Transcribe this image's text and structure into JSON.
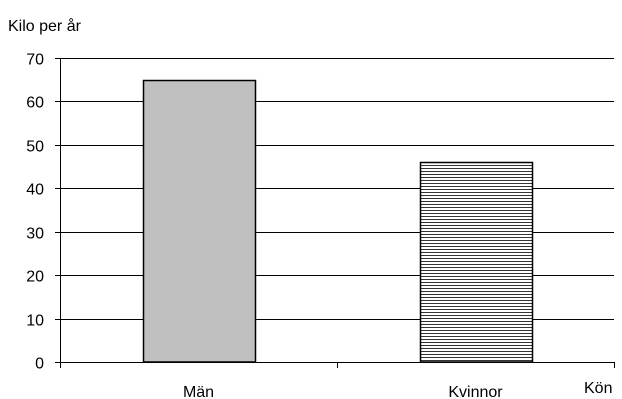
{
  "chart_data": {
    "type": "bar",
    "ylabel": "Kilo per år",
    "xlabel": "Kön",
    "categories": [
      "Män",
      "Kvinnor"
    ],
    "values": [
      65,
      46
    ],
    "ylim": [
      0,
      70
    ],
    "yticks": [
      0,
      10,
      20,
      30,
      40,
      50,
      60,
      70
    ],
    "grid": true,
    "legend": "none",
    "colors": {
      "bar_fill_men": "#c0c0c0",
      "bar_fill_women_pattern": "horizontal-lines",
      "bar_stroke": "#000000",
      "grid": "#000000",
      "axis": "#000000"
    }
  }
}
